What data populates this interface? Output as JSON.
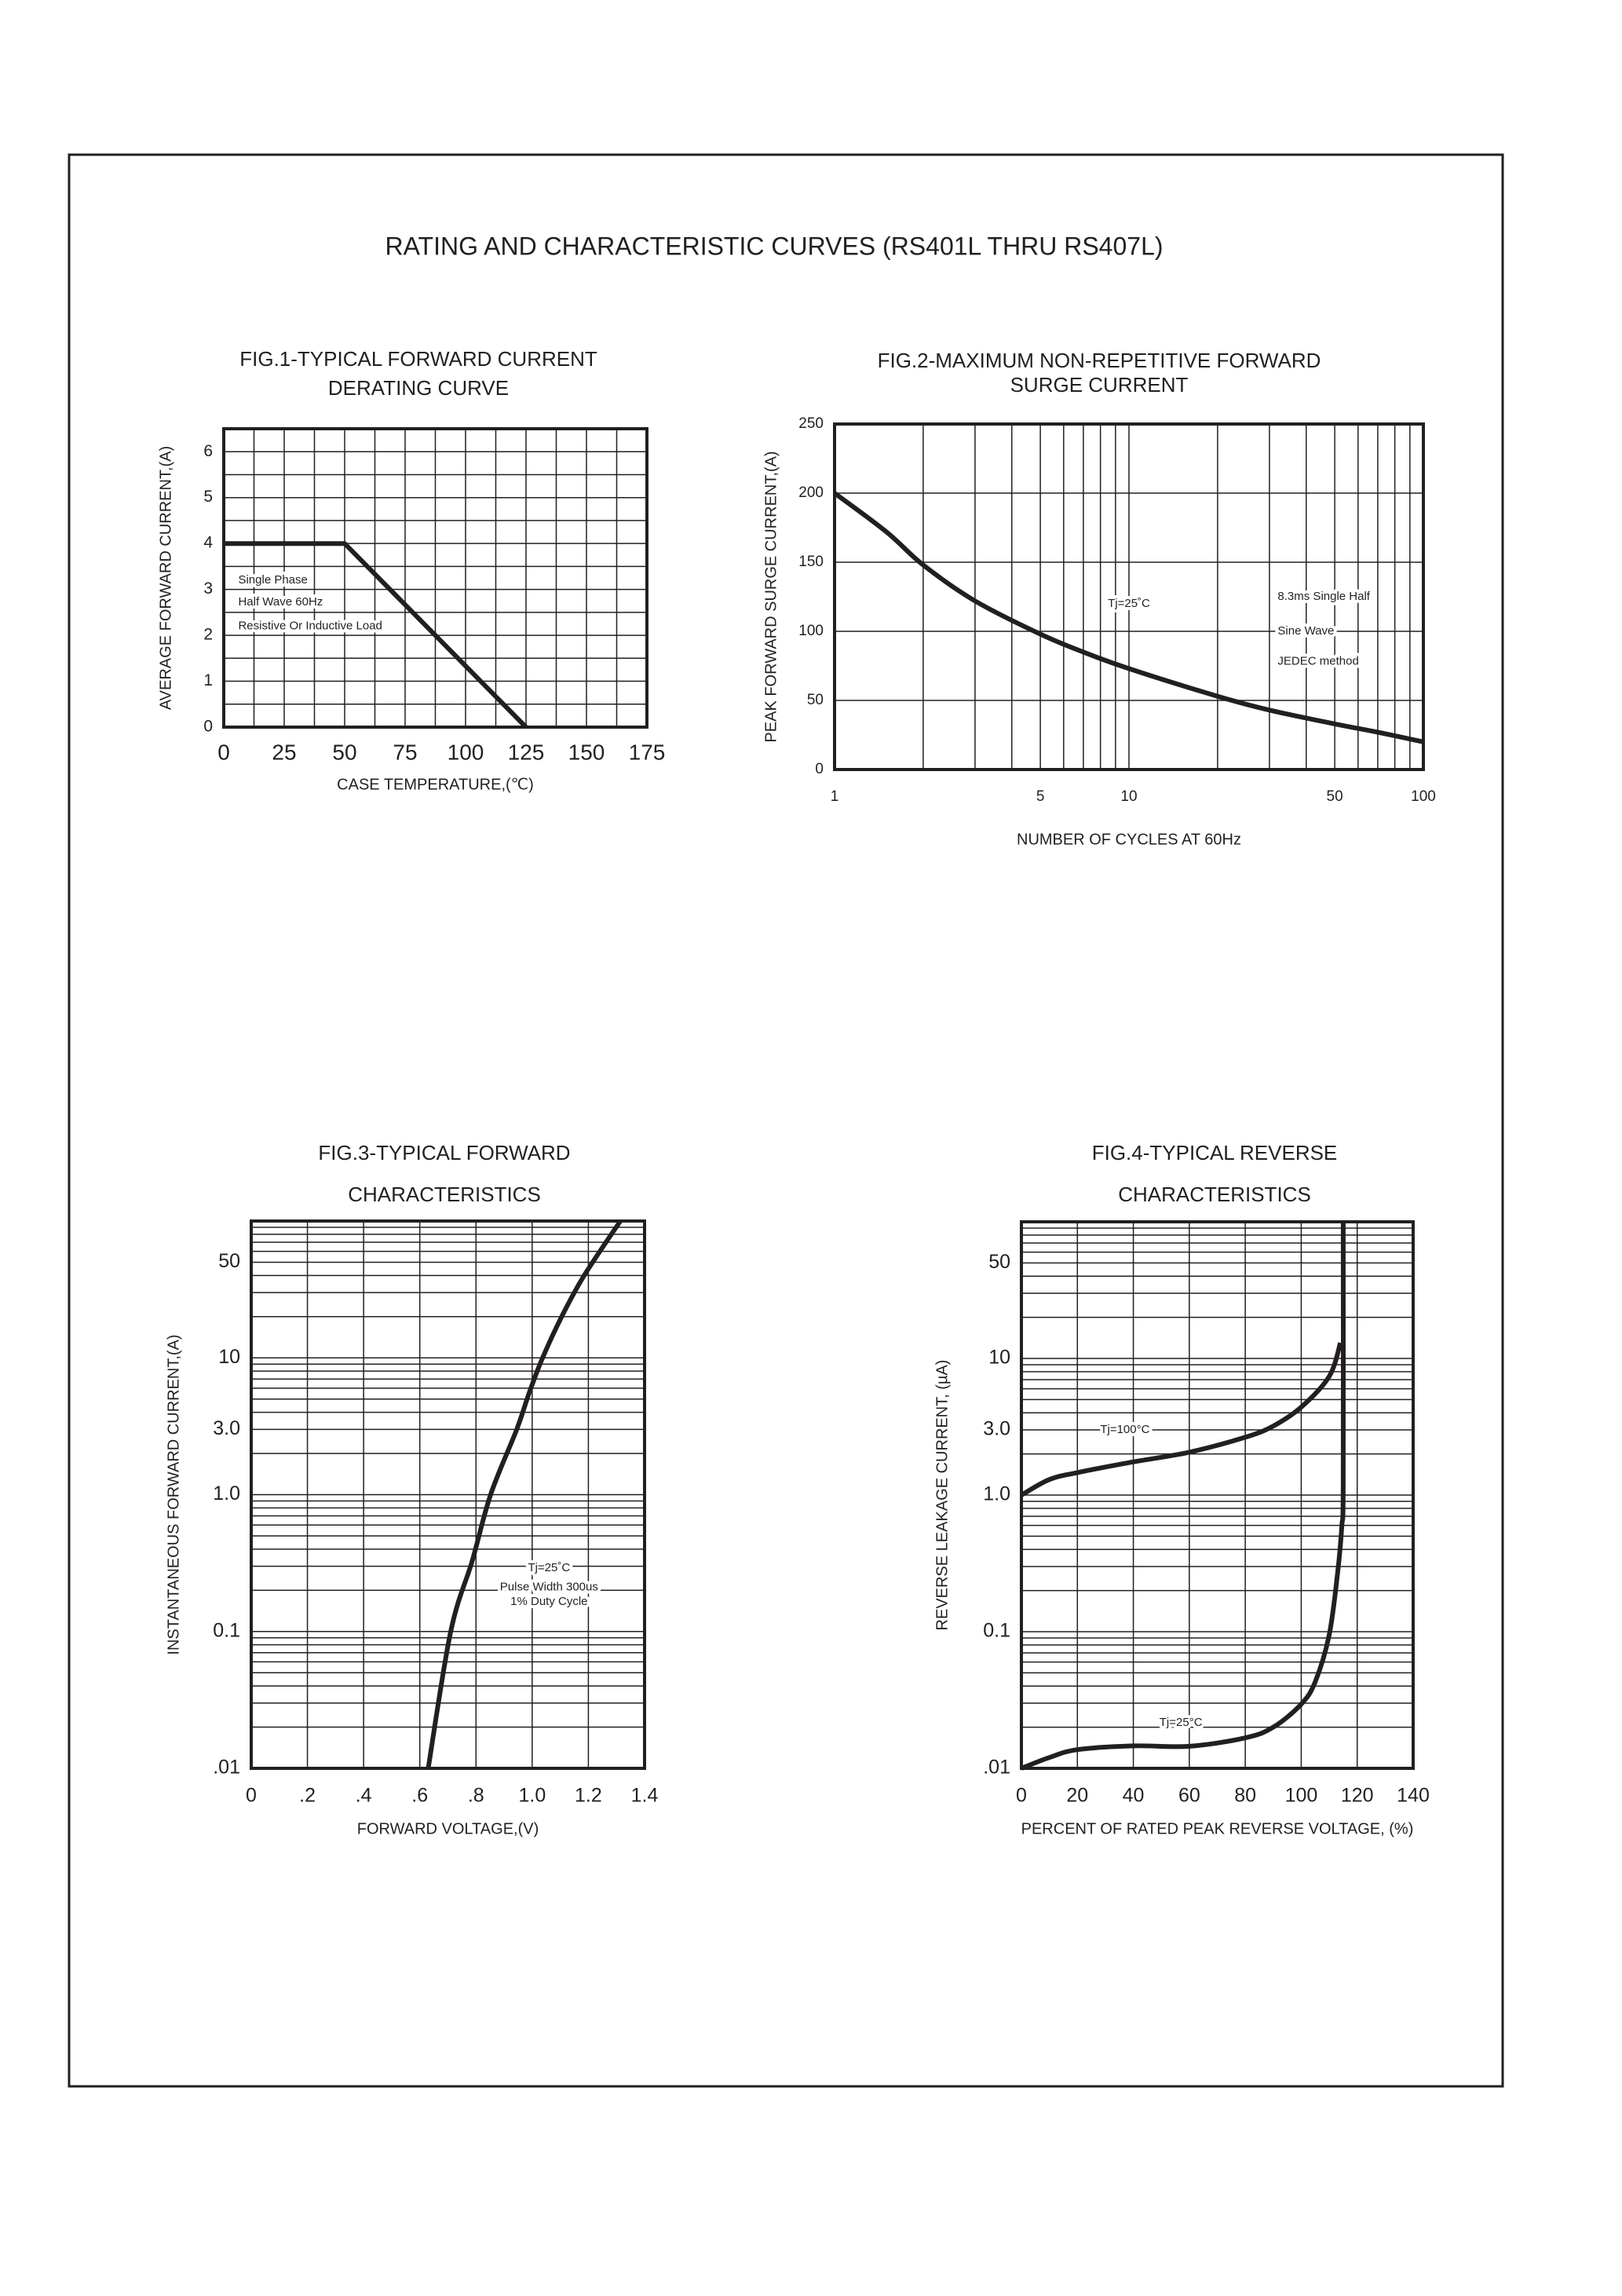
{
  "page": {
    "title": "RATING AND CHARACTERISTIC CURVES (RS401L THRU RS407L)",
    "ink_color": "#231f20",
    "background": "#ffffff"
  },
  "chart_data": [
    {
      "id": "fig1",
      "type": "line",
      "title_lines": [
        "FIG.1-TYPICAL FORWARD CURRENT",
        "DERATING CURVE"
      ],
      "xlabel": "CASE TEMPERATURE,(℃)",
      "ylabel": "AVERAGE FORWARD CURRENT,(A)",
      "xscale": "linear",
      "yscale": "linear",
      "xlim": [
        0,
        175
      ],
      "ylim": [
        0,
        6.5
      ],
      "xgrid_step": 12.5,
      "ygrid_step": 0.5,
      "grid": true,
      "xticks": [
        {
          "v": 0,
          "label": "0"
        },
        {
          "v": 25,
          "label": "25"
        },
        {
          "v": 50,
          "label": "50"
        },
        {
          "v": 75,
          "label": "75"
        },
        {
          "v": 100,
          "label": "100"
        },
        {
          "v": 125,
          "label": "125"
        },
        {
          "v": 150,
          "label": "150"
        },
        {
          "v": 175,
          "label": "175"
        }
      ],
      "yticks": [
        {
          "v": 0,
          "label": "0"
        },
        {
          "v": 1,
          "label": "1"
        },
        {
          "v": 2,
          "label": "2"
        },
        {
          "v": 3,
          "label": "3"
        },
        {
          "v": 4,
          "label": "4"
        },
        {
          "v": 5,
          "label": "5"
        },
        {
          "v": 6,
          "label": "6"
        }
      ],
      "series": [
        {
          "x": [
            0,
            50,
            125
          ],
          "y": [
            4,
            4,
            0
          ]
        }
      ],
      "annotations": [
        "Single Phase",
        "Half Wave 60Hz",
        "Resistive Or Inductive Load"
      ]
    },
    {
      "id": "fig2",
      "type": "line",
      "title_lines": [
        "FIG.2-MAXIMUM NON-REPETITIVE FORWARD",
        "SURGE CURRENT"
      ],
      "xlabel": "NUMBER OF CYCLES AT 60Hz",
      "ylabel": "PEAK FORWARD SURGE CURRENT,(A)",
      "xscale": "log",
      "yscale": "linear",
      "xlim": [
        1,
        100
      ],
      "ylim": [
        0,
        250
      ],
      "ygrid_step": 50,
      "grid": true,
      "xticks": [
        {
          "v": 1,
          "label": "1"
        },
        {
          "v": 5,
          "label": "5"
        },
        {
          "v": 10,
          "label": "10"
        },
        {
          "v": 50,
          "label": "50"
        },
        {
          "v": 100,
          "label": "100"
        }
      ],
      "yticks": [
        {
          "v": 0,
          "label": "0"
        },
        {
          "v": 50,
          "label": "50"
        },
        {
          "v": 100,
          "label": "100"
        },
        {
          "v": 150,
          "label": "150"
        },
        {
          "v": 200,
          "label": "200"
        },
        {
          "v": 250,
          "label": "250"
        }
      ],
      "series": [
        {
          "x": [
            1,
            1.5,
            2,
            3,
            5,
            7,
            10,
            20,
            30,
            50,
            70,
            100
          ],
          "y": [
            200,
            172,
            148,
            122,
            98,
            85,
            73,
            53,
            43,
            33,
            27,
            20
          ]
        }
      ],
      "annotations": [
        "Tj=25˚C",
        "8.3ms Single Half",
        "Sine Wave",
        "JEDEC method"
      ]
    },
    {
      "id": "fig3",
      "type": "line",
      "title_lines": [
        "FIG.3-TYPICAL FORWARD",
        "CHARACTERISTICS"
      ],
      "xlabel": "FORWARD VOLTAGE,(V)",
      "ylabel": "INSTANTANEOUS FORWARD CURRENT,(A)",
      "xscale": "linear",
      "yscale": "log",
      "xlim": [
        0,
        1.4
      ],
      "ylim": [
        0.01,
        100
      ],
      "xgrid_step": 0.2,
      "grid": true,
      "xticks": [
        {
          "v": 0,
          "label": "0"
        },
        {
          "v": 0.2,
          "label": ".2"
        },
        {
          "v": 0.4,
          "label": ".4"
        },
        {
          "v": 0.6,
          "label": ".6"
        },
        {
          "v": 0.8,
          "label": ".8"
        },
        {
          "v": 1.0,
          "label": "1.0"
        },
        {
          "v": 1.2,
          "label": "1.2"
        },
        {
          "v": 1.4,
          "label": "1.4"
        }
      ],
      "yticks": [
        {
          "v": 0.01,
          "label": ".01"
        },
        {
          "v": 0.1,
          "label": "0.1"
        },
        {
          "v": 1,
          "label": "1.0"
        },
        {
          "v": 3,
          "label": "3.0"
        },
        {
          "v": 10,
          "label": "10"
        },
        {
          "v": 50,
          "label": "50"
        }
      ],
      "series": [
        {
          "x": [
            0.63,
            0.71,
            0.787,
            0.852,
            0.945,
            0.99,
            1.037,
            1.105,
            1.185,
            1.314
          ],
          "y": [
            0.01,
            0.1,
            0.33,
            1.0,
            3.0,
            5.6,
            10,
            20,
            40,
            100
          ]
        }
      ],
      "annotations": [
        "Tj=25˚C",
        "Pulse Width 300us",
        "1% Duty Cycle"
      ]
    },
    {
      "id": "fig4",
      "type": "line",
      "title_lines": [
        "FIG.4-TYPICAL REVERSE",
        "CHARACTERISTICS"
      ],
      "xlabel": "PERCENT OF RATED PEAK REVERSE VOLTAGE, (%)",
      "ylabel": "REVERSE LEAKAGE CURRENT, (µA)",
      "xscale": "linear",
      "yscale": "log",
      "xlim": [
        0,
        140
      ],
      "ylim": [
        0.01,
        100
      ],
      "xgrid_step": 20,
      "grid": true,
      "xticks": [
        {
          "v": 0,
          "label": "0"
        },
        {
          "v": 20,
          "label": "20"
        },
        {
          "v": 40,
          "label": "40"
        },
        {
          "v": 60,
          "label": "60"
        },
        {
          "v": 80,
          "label": "80"
        },
        {
          "v": 100,
          "label": "100"
        },
        {
          "v": 120,
          "label": "120"
        },
        {
          "v": 140,
          "label": "140"
        }
      ],
      "yticks": [
        {
          "v": 0.01,
          "label": ".01"
        },
        {
          "v": 0.1,
          "label": "0.1"
        },
        {
          "v": 1,
          "label": "1.0"
        },
        {
          "v": 3,
          "label": "3.0"
        },
        {
          "v": 10,
          "label": "10"
        },
        {
          "v": 50,
          "label": "50"
        }
      ],
      "series": [
        {
          "name": "Tj=100°C",
          "x": [
            0,
            10,
            20,
            40,
            60,
            80,
            90,
            100,
            110,
            114
          ],
          "y": [
            1.0,
            1.3,
            1.46,
            1.75,
            2.06,
            2.65,
            3.2,
            4.4,
            7.4,
            13
          ]
        },
        {
          "name": "Tj=25°C",
          "x": [
            0,
            10,
            20,
            40,
            60,
            80,
            90,
            100,
            105,
            110,
            113,
            114.5,
            115,
            115
          ],
          "y": [
            0.01,
            0.012,
            0.0137,
            0.0146,
            0.0145,
            0.0167,
            0.02,
            0.0295,
            0.043,
            0.095,
            0.27,
            0.59,
            1.2,
            100
          ]
        }
      ],
      "annotations": []
    }
  ]
}
